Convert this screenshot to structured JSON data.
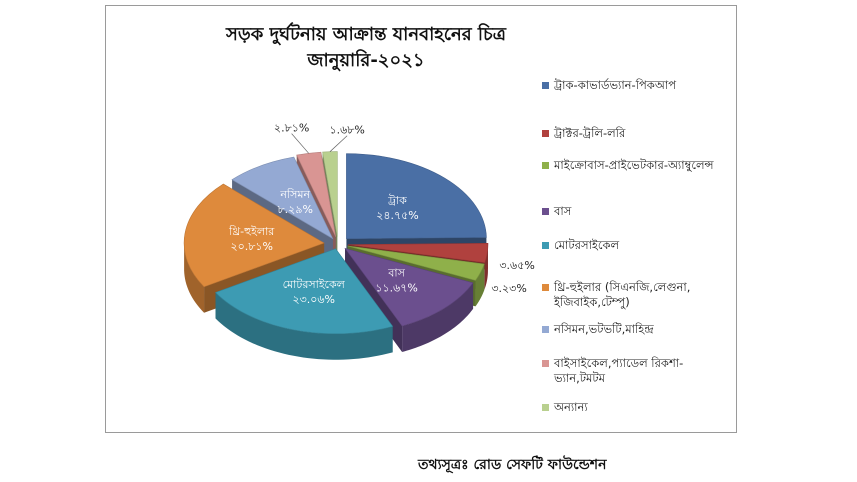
{
  "chart_data": {
    "type": "pie",
    "title": "সড়ক দুর্ঘটনায় আক্রান্ত যানবাহনের চিত্র",
    "subtitle": "জানুয়ারি-২০২১",
    "slices": [
      {
        "legend": "ট্রাক-কাভার্ডভ্যান-পিকআপ",
        "label": "ট্রাক",
        "percent_text": "২৪.৭৫%",
        "value": 24.75,
        "color": "#4a6fa5"
      },
      {
        "legend": "ট্রাক্টর-ট্রলি-লরি",
        "label": "",
        "percent_text": "৩.৬৫%",
        "value": 3.65,
        "color": "#b0413e"
      },
      {
        "legend": "মাইক্রোবাস-প্রাইভেটকার-অ্যাম্বুলেন্স",
        "label": "",
        "percent_text": "৩.২৩%",
        "value": 3.23,
        "color": "#8fb04a"
      },
      {
        "legend": "বাস",
        "label": "বাস",
        "percent_text": "১১.৬৭%",
        "value": 11.67,
        "color": "#6b4f8e"
      },
      {
        "legend": "মোটরসাইকেল",
        "label": "মোটরসাইকেল",
        "percent_text": "২৩.০৬%",
        "value": 23.06,
        "color": "#3d9bb3"
      },
      {
        "legend": "থ্রি-হুইলার (সিএনজি,লেগুনা, ইজিবাইক,টেম্পু)",
        "label": "থ্রি-হুইলার",
        "percent_text": "২০.৮১%",
        "value": 20.81,
        "color": "#de8a3c"
      },
      {
        "legend": "নসিমন,ভটভটি,মাহিন্দ্র",
        "label": "নসিমন",
        "percent_text": "৮.২৯%",
        "value": 8.29,
        "color": "#94a9d3"
      },
      {
        "legend": "বাইসাইকেল,প্যাডেল রিকশা-ভ্যান,টমটম",
        "label": "",
        "percent_text": "২.৮১%",
        "value": 2.81,
        "color": "#d99593"
      },
      {
        "legend": "অন্যান্য",
        "label": "",
        "percent_text": "১.৬৮%",
        "value": 1.68,
        "color": "#b9d08f"
      }
    ]
  },
  "source": "তথ্যসূত্রঃ রোড সেফটি ফাউন্ডেশন"
}
